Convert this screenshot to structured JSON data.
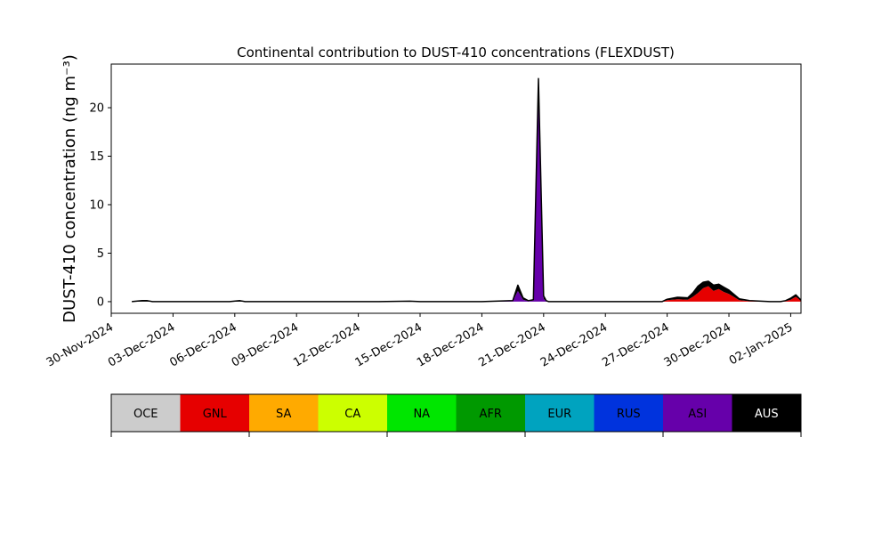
{
  "chart_data": {
    "type": "area",
    "title": "Continental contribution to DUST-410 concentrations (FLEXDUST)",
    "ylabel": "DUST-410 concentration (ng m⁻³)",
    "xlabel": "",
    "xlim": [
      "2024-11-30T00:00",
      "2025-01-02T12:00"
    ],
    "ylim": [
      -1.2,
      24.5
    ],
    "yticks": [
      0,
      5,
      10,
      15,
      20
    ],
    "xticks": [
      "30-Nov-2024",
      "03-Dec-2024",
      "06-Dec-2024",
      "09-Dec-2024",
      "12-Dec-2024",
      "15-Dec-2024",
      "18-Dec-2024",
      "21-Dec-2024",
      "24-Dec-2024",
      "27-Dec-2024",
      "30-Dec-2024",
      "02-Jan-2025"
    ],
    "x": [
      "2024-12-01T00:00",
      "2024-12-01T12:00",
      "2024-12-01T18:00",
      "2024-12-02T00:00",
      "2024-12-03T00:00",
      "2024-12-04T00:00",
      "2024-12-05T00:00",
      "2024-12-05T18:00",
      "2024-12-06T06:00",
      "2024-12-06T12:00",
      "2024-12-07T00:00",
      "2024-12-10T00:00",
      "2024-12-13T00:00",
      "2024-12-14T12:00",
      "2024-12-15T00:00",
      "2024-12-18T00:00",
      "2024-12-19T12:00",
      "2024-12-19T18:00",
      "2024-12-20T00:00",
      "2024-12-20T06:00",
      "2024-12-20T12:00",
      "2024-12-20T18:00",
      "2024-12-21T00:00",
      "2024-12-21T03:00",
      "2024-12-21T06:00",
      "2024-12-21T12:00",
      "2024-12-21T18:00",
      "2024-12-22T00:00",
      "2024-12-23T00:00",
      "2024-12-24T00:00",
      "2024-12-25T00:00",
      "2024-12-26T00:00",
      "2024-12-26T12:00",
      "2024-12-26T18:00",
      "2024-12-27T00:00",
      "2024-12-27T12:00",
      "2024-12-28T00:00",
      "2024-12-28T06:00",
      "2024-12-28T12:00",
      "2024-12-28T18:00",
      "2024-12-29T00:00",
      "2024-12-29T06:00",
      "2024-12-29T12:00",
      "2024-12-29T18:00",
      "2024-12-30T00:00",
      "2024-12-30T12:00",
      "2024-12-31T00:00",
      "2025-01-01T00:00",
      "2025-01-01T06:00",
      "2025-01-01T12:00",
      "2025-01-01T18:00",
      "2025-01-02T00:00",
      "2025-01-02T06:00",
      "2025-01-02T12:00"
    ],
    "series": [
      {
        "name": "OCE",
        "color": "#cccccc",
        "values": [
          0,
          0,
          0,
          0,
          0,
          0,
          0,
          0,
          0,
          0,
          0,
          0,
          0,
          0,
          0,
          0,
          0,
          0,
          0,
          0,
          0,
          0,
          0,
          0,
          0,
          0,
          0,
          0,
          0,
          0,
          0,
          0,
          0,
          0,
          0,
          0,
          0,
          0,
          0,
          0,
          0,
          0,
          0,
          0,
          0,
          0,
          0,
          0,
          0,
          0,
          0,
          0,
          0,
          0
        ]
      },
      {
        "name": "GNL",
        "color": "#e60000",
        "values": [
          0,
          0,
          0,
          0,
          0,
          0,
          0,
          0,
          0,
          0,
          0,
          0,
          0,
          0,
          0,
          0,
          0,
          0,
          0,
          0,
          0,
          0,
          0,
          0,
          0,
          0,
          0,
          0,
          0,
          0,
          0,
          0,
          0,
          0,
          0.15,
          0.25,
          0.2,
          0.5,
          0.9,
          1.4,
          1.6,
          1.1,
          1.3,
          1.0,
          0.8,
          0.15,
          0.05,
          0,
          0,
          0,
          0.05,
          0.2,
          0.5,
          0.1
        ]
      },
      {
        "name": "SA",
        "color": "#ffaa00",
        "values": [
          0,
          0,
          0,
          0,
          0,
          0,
          0,
          0,
          0,
          0,
          0,
          0,
          0,
          0,
          0,
          0,
          0,
          0,
          0,
          0,
          0,
          0,
          0,
          0,
          0,
          0,
          0,
          0,
          0,
          0,
          0,
          0,
          0,
          0,
          0,
          0,
          0,
          0,
          0,
          0,
          0,
          0,
          0,
          0,
          0,
          0,
          0,
          0,
          0,
          0,
          0,
          0,
          0,
          0
        ]
      },
      {
        "name": "CA",
        "color": "#ccff00",
        "values": [
          0,
          0,
          0,
          0,
          0,
          0,
          0,
          0,
          0,
          0,
          0,
          0,
          0,
          0,
          0,
          0,
          0,
          0,
          0,
          0,
          0,
          0,
          0,
          0,
          0,
          0,
          0,
          0,
          0,
          0,
          0,
          0,
          0,
          0,
          0,
          0,
          0,
          0,
          0,
          0,
          0,
          0,
          0,
          0,
          0,
          0,
          0,
          0,
          0,
          0,
          0,
          0,
          0,
          0
        ]
      },
      {
        "name": "NA",
        "color": "#00e600",
        "values": [
          0,
          0,
          0,
          0,
          0,
          0,
          0,
          0,
          0,
          0,
          0,
          0,
          0,
          0,
          0,
          0,
          0,
          0,
          0,
          0,
          0,
          0,
          0,
          0,
          0,
          0,
          0,
          0,
          0,
          0,
          0,
          0,
          0,
          0,
          0,
          0,
          0,
          0,
          0,
          0,
          0,
          0,
          0,
          0,
          0,
          0,
          0,
          0,
          0,
          0,
          0,
          0,
          0,
          0
        ]
      },
      {
        "name": "AFR",
        "color": "#009900",
        "values": [
          0,
          0,
          0,
          0,
          0,
          0,
          0,
          0,
          0,
          0,
          0,
          0,
          0,
          0,
          0,
          0,
          0,
          0,
          0,
          0,
          0,
          0,
          0,
          0,
          0,
          0,
          0,
          0,
          0,
          0,
          0,
          0,
          0,
          0,
          0,
          0,
          0,
          0,
          0,
          0,
          0,
          0,
          0,
          0,
          0,
          0,
          0,
          0,
          0,
          0,
          0,
          0,
          0,
          0
        ]
      },
      {
        "name": "EUR",
        "color": "#00a3bf",
        "values": [
          0,
          0,
          0,
          0,
          0,
          0,
          0,
          0,
          0,
          0,
          0,
          0,
          0,
          0,
          0,
          0,
          0,
          0,
          0,
          0,
          0,
          0,
          0,
          0,
          0,
          0,
          0,
          0,
          0,
          0,
          0,
          0,
          0,
          0,
          0,
          0,
          0,
          0,
          0,
          0,
          0,
          0,
          0,
          0,
          0,
          0,
          0,
          0,
          0,
          0,
          0,
          0,
          0,
          0
        ]
      },
      {
        "name": "RUS",
        "color": "#0033dd",
        "values": [
          0,
          0,
          0,
          0,
          0,
          0,
          0,
          0,
          0,
          0,
          0,
          0,
          0,
          0,
          0,
          0,
          0,
          0,
          0,
          0,
          0,
          0,
          0,
          0,
          0,
          0,
          0,
          0,
          0,
          0,
          0,
          0,
          0,
          0,
          0,
          0,
          0,
          0,
          0,
          0,
          0,
          0,
          0,
          0,
          0,
          0,
          0,
          0,
          0,
          0,
          0,
          0,
          0,
          0
        ]
      },
      {
        "name": "ASI",
        "color": "#6600aa",
        "values": [
          0,
          0,
          0,
          0,
          0,
          0,
          0,
          0,
          0,
          0,
          0,
          0,
          0,
          0,
          0,
          0,
          0.05,
          1.1,
          0.2,
          0.05,
          0.1,
          22.0,
          0.3,
          0.05,
          0,
          0,
          0,
          0,
          0,
          0,
          0,
          0,
          0,
          0,
          0,
          0,
          0,
          0,
          0,
          0,
          0,
          0,
          0,
          0,
          0,
          0,
          0,
          0,
          0,
          0,
          0,
          0,
          0,
          0
        ]
      },
      {
        "name": "AUS",
        "color": "#000000",
        "values": [
          0,
          0.1,
          0.1,
          0,
          0,
          0,
          0,
          0,
          0.1,
          0,
          0,
          0,
          0,
          0.05,
          0,
          0,
          0.05,
          0.6,
          0.2,
          0.05,
          0.1,
          1.0,
          0.3,
          0.05,
          0,
          0,
          0,
          0,
          0,
          0,
          0,
          0,
          0,
          0,
          0.1,
          0.2,
          0.2,
          0.4,
          0.7,
          0.6,
          0.5,
          0.6,
          0.5,
          0.5,
          0.4,
          0.15,
          0.05,
          0,
          0,
          0,
          0.05,
          0.15,
          0.2,
          0.05
        ]
      }
    ],
    "legend_position": "bottom colorbar",
    "grid": false
  }
}
